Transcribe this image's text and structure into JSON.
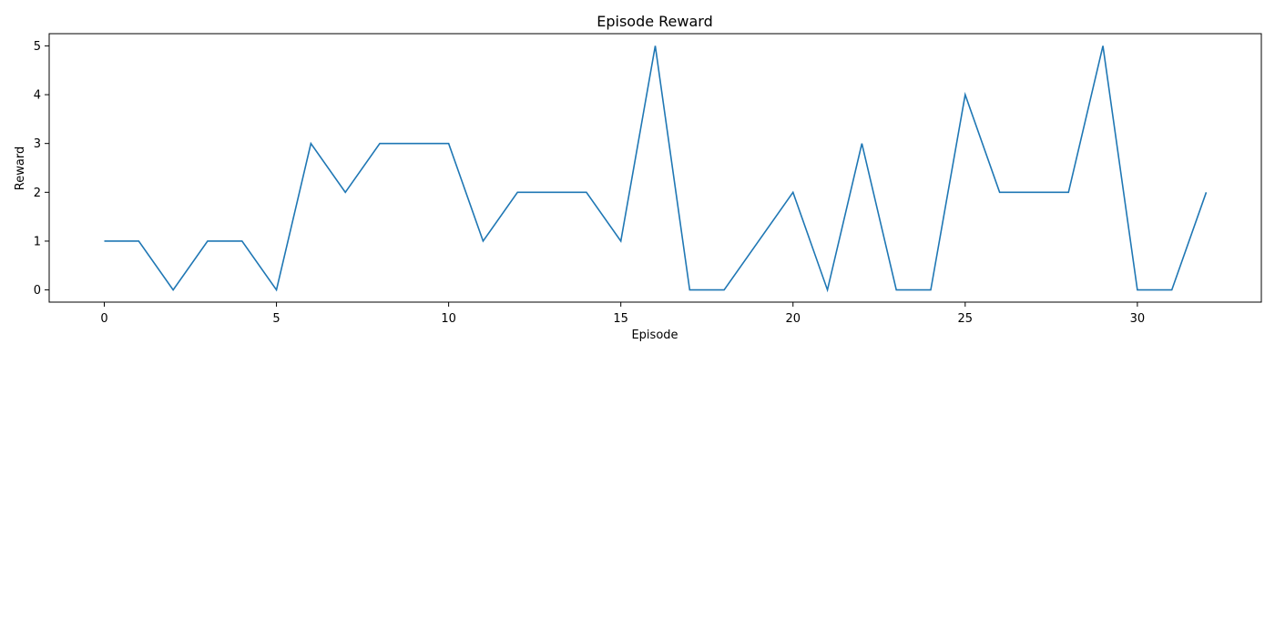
{
  "chart_data": {
    "type": "line",
    "title": "Episode Reward",
    "xlabel": "Episode",
    "ylabel": "Reward",
    "xlim": [
      -1.6,
      33.6
    ],
    "ylim": [
      -0.25,
      5.25
    ],
    "xticks": [
      0,
      5,
      10,
      15,
      20,
      25,
      30
    ],
    "yticks": [
      0,
      1,
      2,
      3,
      4,
      5
    ],
    "grid": false,
    "series": [
      {
        "color": "#1f77b4",
        "x": [
          0,
          1,
          2,
          3,
          4,
          5,
          6,
          7,
          8,
          9,
          10,
          11,
          12,
          13,
          14,
          15,
          16,
          17,
          18,
          19,
          20,
          21,
          22,
          23,
          24,
          25,
          26,
          27,
          28,
          29,
          30,
          31,
          32
        ],
        "values": [
          1,
          1,
          0,
          1,
          1,
          0,
          3,
          2,
          3,
          3,
          3,
          1,
          2,
          2,
          2,
          1,
          5,
          0,
          0,
          1,
          2,
          0,
          3,
          0,
          0,
          4,
          2,
          2,
          2,
          5,
          0,
          0,
          2
        ]
      }
    ]
  }
}
